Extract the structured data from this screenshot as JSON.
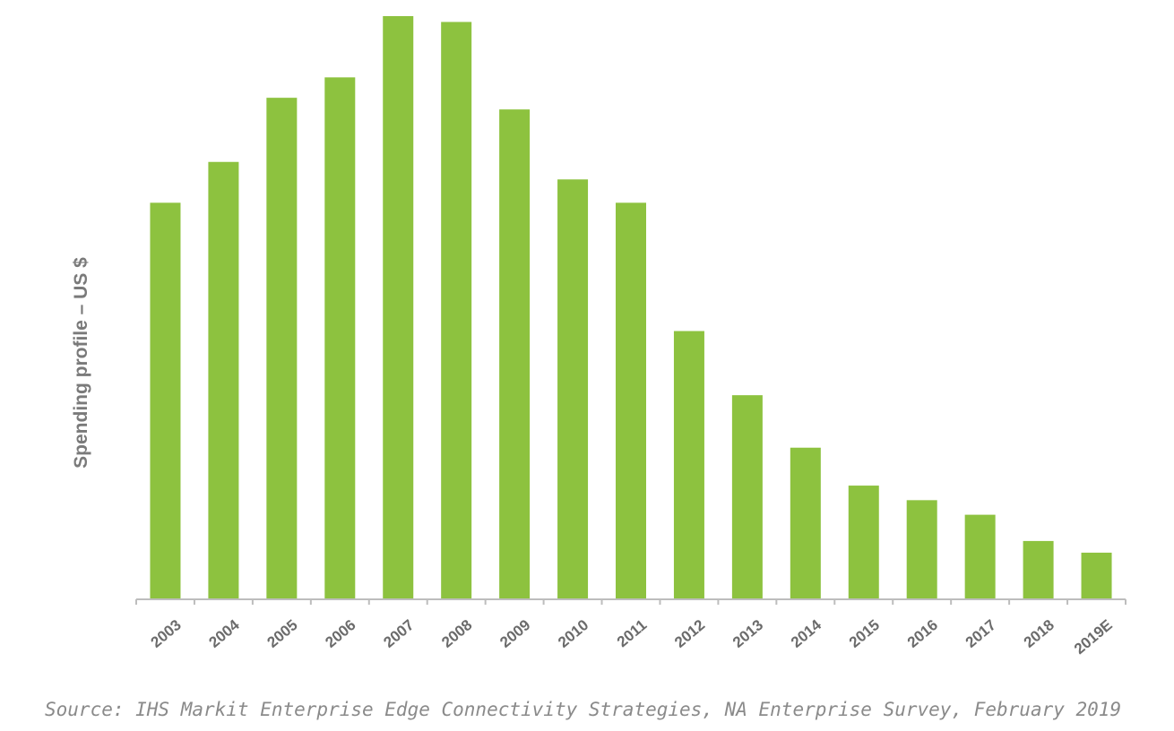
{
  "chart_data": {
    "type": "bar",
    "title": "",
    "xlabel": "",
    "ylabel": "Spending profile – US $",
    "categories": [
      "2003",
      "2004",
      "2005",
      "2006",
      "2007",
      "2008",
      "2009",
      "2010",
      "2011",
      "2012",
      "2013",
      "2014",
      "2015",
      "2016",
      "2017",
      "2018",
      "2019E"
    ],
    "values": [
      68,
      75,
      86,
      89.5,
      100,
      99,
      84,
      72,
      68,
      46,
      35,
      26,
      19.5,
      17,
      14.5,
      10,
      8
    ],
    "ylim": [
      0,
      100
    ],
    "bar_color": "#8dc23f",
    "grid": false,
    "legend": "none",
    "y_tick_labels_shown": false
  },
  "source": "Source: IHS Markit Enterprise Edge Connectivity Strategies, NA Enterprise Survey, February 2019"
}
